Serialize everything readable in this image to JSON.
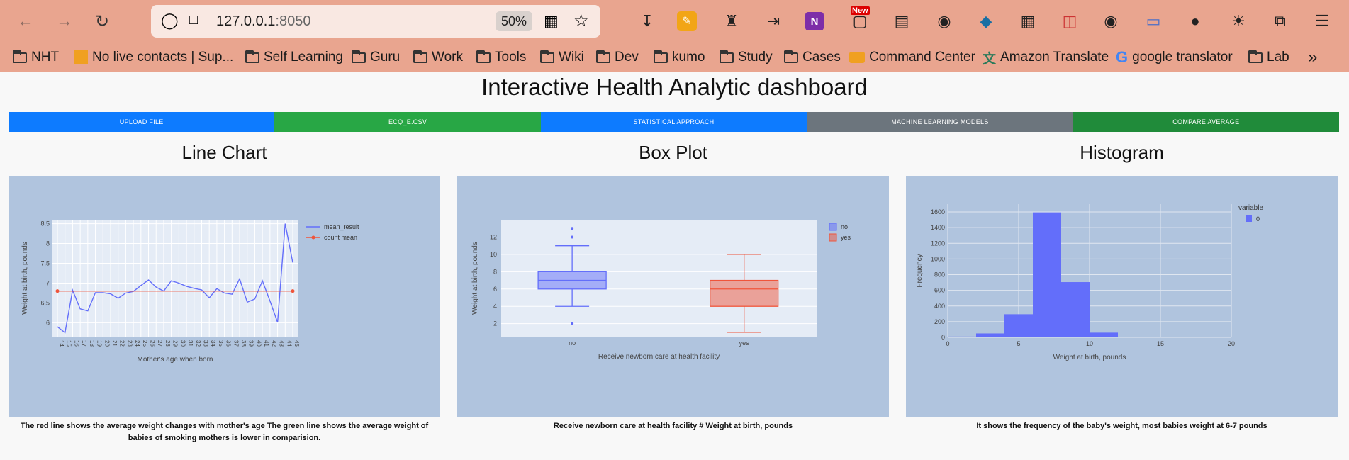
{
  "browser": {
    "url_host": "127.0.0.1",
    "url_port": ":8050",
    "zoom": "50%",
    "bookmarks": [
      {
        "label": "NHT",
        "icon": "folder-icon"
      },
      {
        "label": "No live contacts | Sup...",
        "icon": "app-icon"
      },
      {
        "label": "Self Learning",
        "icon": "folder-icon"
      },
      {
        "label": "Guru",
        "icon": "folder-icon"
      },
      {
        "label": "Work",
        "icon": "folder-icon"
      },
      {
        "label": "Tools",
        "icon": "folder-icon"
      },
      {
        "label": "Wiki",
        "icon": "folder-icon"
      },
      {
        "label": "Dev",
        "icon": "folder-icon"
      },
      {
        "label": "kumo",
        "icon": "folder-icon"
      },
      {
        "label": "Study",
        "icon": "folder-icon"
      },
      {
        "label": "Cases",
        "icon": "folder-icon"
      },
      {
        "label": "Command Center",
        "icon": "app-icon"
      },
      {
        "label": "Amazon Translate",
        "icon": "translate-icon"
      },
      {
        "label": "google translator",
        "icon": "google-icon"
      },
      {
        "label": "Lab",
        "icon": "folder-icon"
      }
    ]
  },
  "dashboard": {
    "title": "Interactive Health Analytic dashboard",
    "tabs": [
      {
        "label": "UPLOAD FILE",
        "color": "#0d7bff"
      },
      {
        "label": "ECQ_E.CSV",
        "color": "#28a745"
      },
      {
        "label": "STATISTICAL APPROACH",
        "color": "#0d7bff"
      },
      {
        "label": "MACHINE LEARNING MODELS",
        "color": "#6c757d"
      },
      {
        "label": "COMPARE AVERAGE",
        "color": "#208b3a"
      }
    ],
    "line_title": "Line Chart",
    "box_title": "Box Plot",
    "hist_title": "Histogram",
    "line_caption": "The red line shows the average weight changes with mother's age The green line shows the average weight of babies of smoking mothers is lower in comparision.",
    "box_caption": "Receive newborn care at health facility # Weight at birth, pounds",
    "hist_caption": "It shows the frequency of the baby's weight, most babies weight at 6-7 pounds"
  },
  "chart_data": [
    {
      "type": "line",
      "title": "Line Chart",
      "xlabel": "Mother's age when born",
      "ylabel": "Weight at birth, pounds",
      "x": [
        14,
        15,
        16,
        17,
        18,
        19,
        20,
        21,
        22,
        23,
        24,
        25,
        26,
        27,
        28,
        29,
        30,
        31,
        32,
        33,
        34,
        35,
        36,
        37,
        38,
        39,
        40,
        41,
        42,
        43,
        44,
        45
      ],
      "xticks": [
        "14",
        "15",
        "16",
        "17",
        "18",
        "19",
        "20",
        "21",
        "22",
        "23",
        "24",
        "25",
        "26",
        "27",
        "28",
        "29",
        "30",
        "31",
        "32",
        "33",
        "34",
        "35",
        "36",
        "37",
        "38",
        "39",
        "40",
        "41",
        "42",
        "43",
        "44",
        "45"
      ],
      "yticks": [
        "6",
        "6.5",
        "7",
        "7.5",
        "8",
        "8.5"
      ],
      "ylim": [
        5.65,
        8.6
      ],
      "series": [
        {
          "name": "mean_result",
          "color": "#636efa",
          "values": [
            5.9,
            5.75,
            6.82,
            6.35,
            6.3,
            6.76,
            6.76,
            6.73,
            6.62,
            6.75,
            6.79,
            6.94,
            7.08,
            6.9,
            6.8,
            7.06,
            7.0,
            6.92,
            6.87,
            6.83,
            6.63,
            6.86,
            6.75,
            6.72,
            7.11,
            6.52,
            6.6,
            7.06,
            6.55,
            6.01,
            8.5,
            7.52
          ]
        },
        {
          "name": "count mean",
          "color": "#ef553b",
          "values": [
            6.8,
            6.8,
            6.8,
            6.8,
            6.8,
            6.8,
            6.8,
            6.8,
            6.8,
            6.8,
            6.8,
            6.8,
            6.8,
            6.8,
            6.8,
            6.8,
            6.8,
            6.8,
            6.8,
            6.8,
            6.8,
            6.8,
            6.8,
            6.8,
            6.8,
            6.8,
            6.8,
            6.8,
            6.8,
            6.8,
            6.8,
            6.8
          ]
        }
      ]
    },
    {
      "type": "box",
      "title": "Box Plot",
      "xlabel": "Receive newborn care at health facility",
      "ylabel": "Weight at birth, pounds",
      "categories": [
        "no",
        "yes"
      ],
      "yticks": [
        "2",
        "4",
        "6",
        "8",
        "10",
        "12"
      ],
      "ylim": [
        0.5,
        14
      ],
      "series": [
        {
          "name": "no",
          "color": "#636efa",
          "min": 4,
          "q1": 6,
          "median": 7,
          "q3": 8,
          "max": 11,
          "outliers": [
            2,
            12,
            13
          ]
        },
        {
          "name": "yes",
          "color": "#ef553b",
          "min": 1,
          "q1": 4,
          "median": 6,
          "q3": 7,
          "max": 10,
          "outliers": []
        }
      ]
    },
    {
      "type": "histogram",
      "title": "Histogram",
      "xlabel": "Weight at birth, pounds",
      "ylabel": "Frequency",
      "legend_title": "variable",
      "xticks": [
        "0",
        "5",
        "10",
        "15",
        "20"
      ],
      "yticks": [
        "0",
        "200",
        "400",
        "600",
        "800",
        "1000",
        "1200",
        "1400",
        "1600"
      ],
      "xlim": [
        0,
        20
      ],
      "ylim": [
        0,
        1700
      ],
      "series": [
        {
          "name": "0",
          "color": "#636efa",
          "bins": [
            [
              0,
              2,
              10
            ],
            [
              2,
              4,
              50
            ],
            [
              4,
              6,
              295
            ],
            [
              6,
              8,
              1595
            ],
            [
              8,
              10,
              705
            ],
            [
              10,
              12,
              60
            ],
            [
              12,
              14,
              6
            ],
            [
              14,
              16,
              1
            ]
          ]
        }
      ]
    }
  ]
}
